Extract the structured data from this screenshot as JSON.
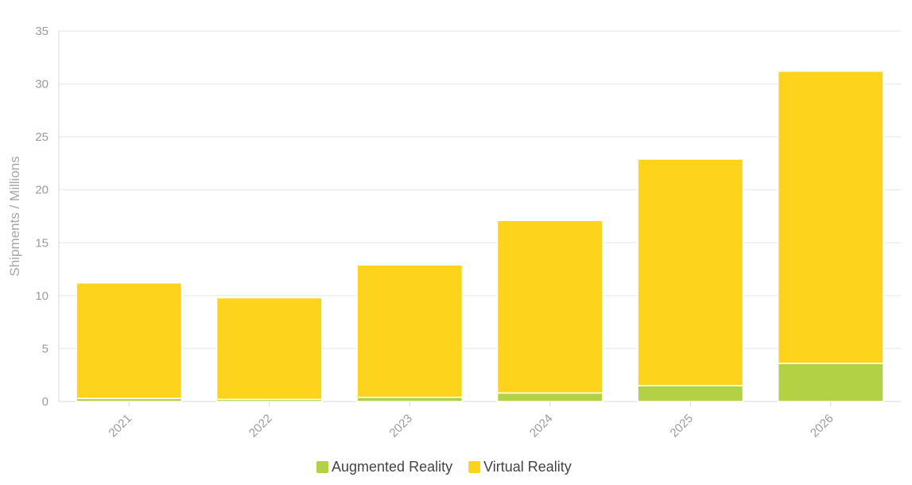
{
  "chart_data": {
    "type": "bar",
    "stacked": true,
    "title": "",
    "xlabel": "",
    "ylabel": "Shipments / Millions",
    "categories": [
      "2021",
      "2022",
      "2023",
      "2024",
      "2025",
      "2026"
    ],
    "series": [
      {
        "name": "Augmented Reality",
        "color": "#b3d144",
        "values": [
          0.3,
          0.2,
          0.4,
          0.8,
          1.5,
          3.6
        ]
      },
      {
        "name": "Virtual Reality",
        "color": "#fdd31c",
        "values": [
          10.9,
          9.6,
          12.5,
          16.3,
          21.4,
          27.6
        ]
      }
    ],
    "ylim": [
      0,
      35
    ],
    "yticks": [
      0,
      5,
      10,
      15,
      20,
      25,
      30,
      35
    ],
    "grid": true,
    "legend": "bottom-center"
  }
}
